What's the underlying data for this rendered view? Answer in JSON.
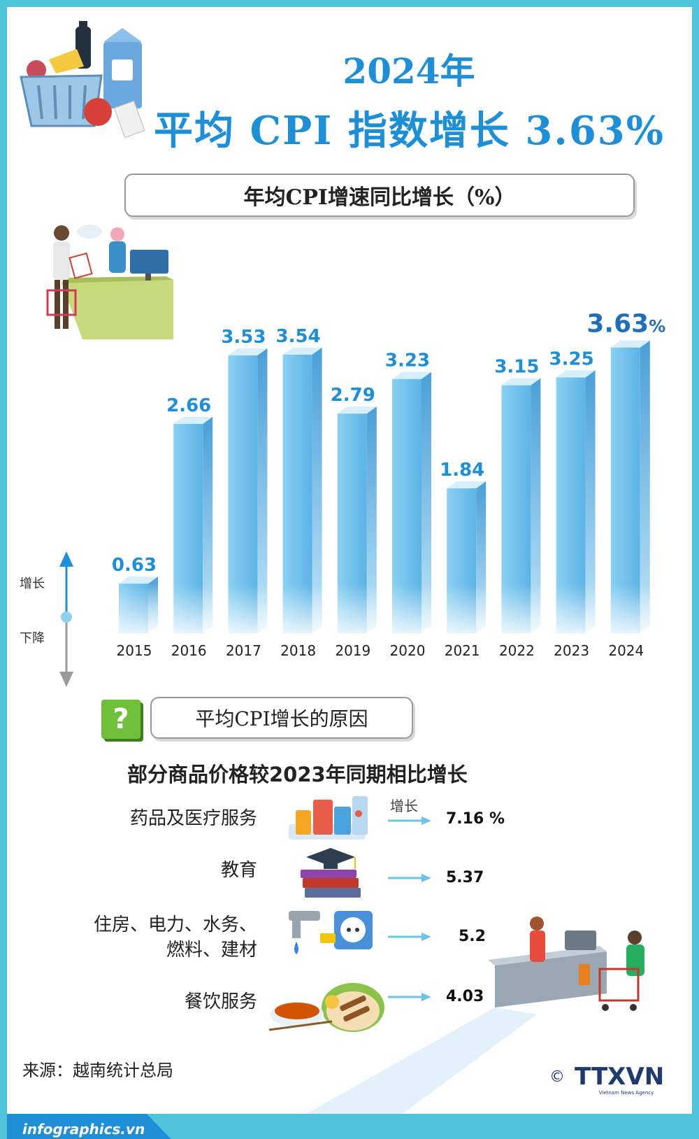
{
  "header": {
    "year_title": "2024年",
    "main_title": "平均 CPI 指数增长 3.63%"
  },
  "chart_box_title": "年均CPI增速同比增长（%）",
  "legend": {
    "up_label": "增长",
    "down_label": "下降"
  },
  "chart_data": {
    "type": "bar",
    "categories": [
      "2015",
      "2016",
      "2017",
      "2018",
      "2019",
      "2020",
      "2021",
      "2022",
      "2023",
      "2024"
    ],
    "values": [
      0.63,
      2.66,
      3.53,
      3.54,
      2.79,
      3.23,
      1.84,
      3.15,
      3.25,
      3.63
    ],
    "value_labels": [
      "0.63",
      "2.66",
      "3.53",
      "3.54",
      "2.79",
      "3.23",
      "1.84",
      "3.15",
      "3.25",
      "3.63"
    ],
    "last_value_suffix": "%",
    "title": "年均CPI增速同比增长（%）",
    "ylim": [
      0,
      4
    ],
    "grid": false,
    "bar_color": "#5bb4e8",
    "label_color": "#1e8fd6"
  },
  "reasons": {
    "question_icon": "?",
    "box_title": "平均CPI增长的原因",
    "heading": "部分商品价格较2023年同期相比增长",
    "arrow_label": "增长",
    "items": [
      {
        "label": "药品及医疗服务",
        "value": "7.16 %",
        "icon": "medicine-icon"
      },
      {
        "label": "教育",
        "value": "5.37",
        "icon": "education-icon"
      },
      {
        "label_line1": "住房、电力、水务、",
        "label_line2": "燃料、建材",
        "value": "5.2",
        "icon": "utilities-icon"
      },
      {
        "label": "餐饮服务",
        "value": "4.03",
        "icon": "food-icon"
      }
    ]
  },
  "footer": {
    "source": "来源：越南统计总局",
    "site": "infographics.vn",
    "copyright": "©",
    "agency_logo": "TTXVN",
    "agency_sub": "Vietnam News Agency"
  },
  "colors": {
    "accent": "#1e8fd6",
    "frame": "#4fc3d9",
    "green": "#6fbf3b"
  }
}
